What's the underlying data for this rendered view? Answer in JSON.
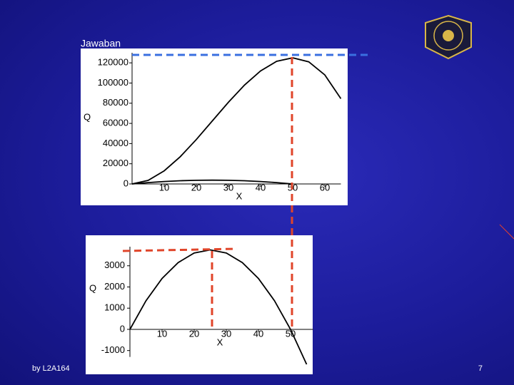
{
  "slide_title": "Jawaban",
  "footer": "by L2A164",
  "page_number": "7",
  "chart_data": [
    {
      "type": "line",
      "y_label": "Q",
      "x_label": "X",
      "x": [
        0,
        5,
        10,
        15,
        20,
        25,
        30,
        35,
        40,
        45,
        50,
        55,
        60,
        65
      ],
      "series": [
        {
          "color": "#000000",
          "values": [
            0,
            3500,
            13000,
            27000,
            44000,
            62500,
            81000,
            98000,
            112000,
            121500,
            125000,
            121000,
            108000,
            84500
          ]
        },
        {
          "color": "#000000",
          "values": [
            0,
            1350,
            2400,
            3150,
            3600,
            3750,
            3600,
            3150,
            2400,
            1350,
            0,
            null,
            null,
            null
          ]
        }
      ],
      "xlim": [
        0,
        65
      ],
      "ylim": [
        0,
        130000
      ],
      "xticks": [
        10,
        20,
        30,
        40,
        50,
        60
      ],
      "yticks": [
        0,
        20000,
        40000,
        60000,
        80000,
        100000,
        120000
      ]
    },
    {
      "type": "line",
      "y_label": "Q",
      "x_label": "X",
      "x": [
        0,
        5,
        10,
        15,
        20,
        25,
        30,
        35,
        40,
        45,
        50,
        55
      ],
      "series": [
        {
          "color": "#000000",
          "values": [
            0,
            1350,
            2400,
            3150,
            3600,
            3750,
            3600,
            3150,
            2400,
            1350,
            0,
            -1650
          ]
        }
      ],
      "xlim": [
        0,
        57
      ],
      "ylim": [
        -1300,
        3900
      ],
      "xticks": [
        10,
        20,
        30,
        40,
        50
      ],
      "yticks": [
        -1000,
        0,
        1000,
        2000,
        3000
      ]
    }
  ]
}
